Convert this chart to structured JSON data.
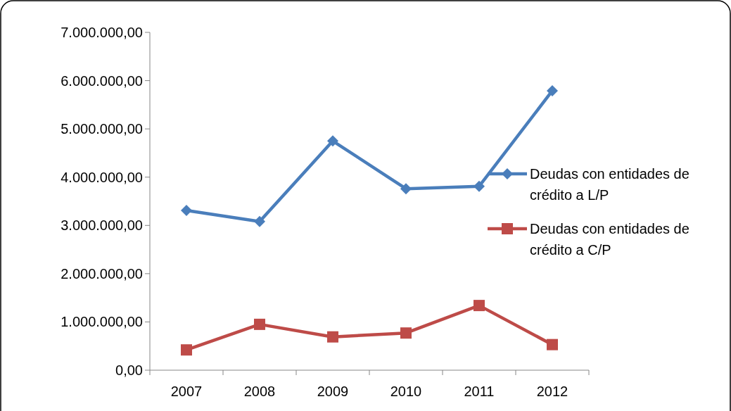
{
  "chart_data": {
    "type": "line",
    "categories": [
      "2007",
      "2008",
      "2009",
      "2010",
      "2011",
      "2012"
    ],
    "series": [
      {
        "name": "Deudas con entidades de crédito a L/P",
        "color": "#4a7ebb",
        "marker": "diamond",
        "values": [
          3310000,
          3080000,
          4750000,
          3760000,
          3810000,
          5790000
        ]
      },
      {
        "name": "Deudas con entidades de crédito a C/P",
        "color": "#be4b48",
        "marker": "square",
        "values": [
          420000,
          950000,
          690000,
          770000,
          1340000,
          530000
        ]
      }
    ],
    "ylim": [
      0,
      7000000
    ],
    "yticks": [
      {
        "value": 0,
        "label": "0,00"
      },
      {
        "value": 1000000,
        "label": "1.000.000,00"
      },
      {
        "value": 2000000,
        "label": "2.000.000,00"
      },
      {
        "value": 3000000,
        "label": "3.000.000,00"
      },
      {
        "value": 4000000,
        "label": "4.000.000,00"
      },
      {
        "value": 5000000,
        "label": "5.000.000,00"
      },
      {
        "value": 6000000,
        "label": "6.000.000,00"
      },
      {
        "value": 7000000,
        "label": "7.000.000,00"
      }
    ],
    "grid": false,
    "legend": "right",
    "line_style": "solid"
  }
}
